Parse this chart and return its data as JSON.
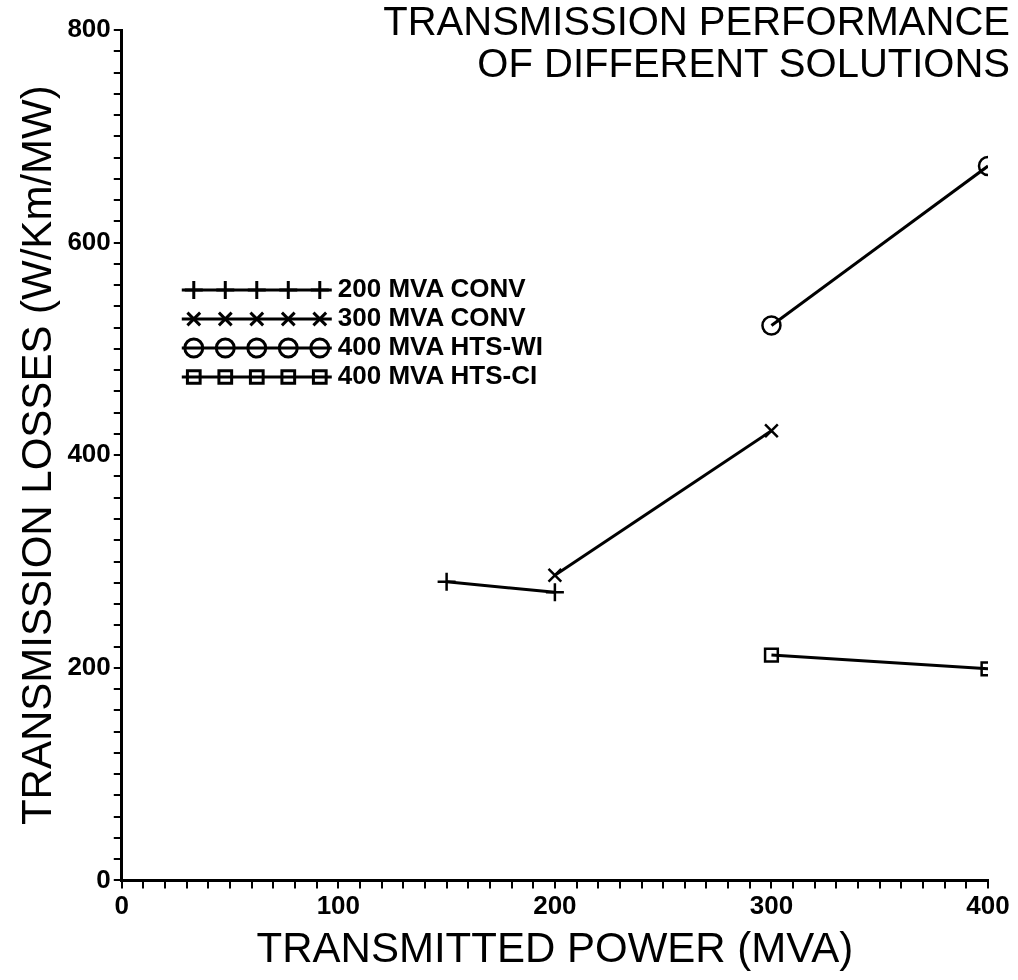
{
  "chart_data": {
    "type": "line",
    "title": "TRANSMISSION PERFORMANCE\nOF DIFFERENT SOLUTIONS",
    "xlabel": "TRANSMITTED POWER (MVA)",
    "ylabel": "TRANSMISSION LOSSES (W/Km/MW)",
    "series": [
      {
        "name": "200 MVA CONV",
        "color": "#000000",
        "marker": "plus",
        "x": [
          150,
          200
        ],
        "values": [
          281,
          271
        ]
      },
      {
        "name": "300 MVA CONV",
        "color": "#000000",
        "marker": "cross",
        "x": [
          200,
          300
        ],
        "values": [
          287,
          423
        ]
      },
      {
        "name": "400 MVA HTS-WI",
        "color": "#000000",
        "marker": "circle",
        "x": [
          300,
          400
        ],
        "values": [
          522,
          672
        ]
      },
      {
        "name": "400 MVA HTS-CI",
        "color": "#000000",
        "marker": "square",
        "x": [
          300,
          400
        ],
        "values": [
          212,
          199
        ]
      }
    ],
    "xlim": [
      0,
      400
    ],
    "ylim": [
      0,
      800
    ],
    "xticks": [
      0,
      {
        "value": 10,
        "label": null
      },
      {
        "value": 20,
        "label": null
      },
      {
        "value": 30,
        "label": null
      },
      {
        "value": 40,
        "label": null
      },
      {
        "value": 50,
        "label": null
      },
      {
        "value": 60,
        "label": null
      },
      {
        "value": 70,
        "label": null
      },
      {
        "value": 80,
        "label": null
      },
      {
        "value": 90,
        "label": null
      },
      100,
      {
        "value": 110,
        "label": null
      },
      {
        "value": 120,
        "label": null
      },
      {
        "value": 130,
        "label": null
      },
      {
        "value": 140,
        "label": null
      },
      {
        "value": 150,
        "label": null
      },
      {
        "value": 160,
        "label": null
      },
      {
        "value": 170,
        "label": null
      },
      {
        "value": 180,
        "label": null
      },
      {
        "value": 190,
        "label": null
      },
      200,
      {
        "value": 210,
        "label": null
      },
      {
        "value": 220,
        "label": null
      },
      {
        "value": 230,
        "label": null
      },
      {
        "value": 240,
        "label": null
      },
      {
        "value": 250,
        "label": null
      },
      {
        "value": 260,
        "label": null
      },
      {
        "value": 270,
        "label": null
      },
      {
        "value": 280,
        "label": null
      },
      {
        "value": 290,
        "label": null
      },
      300,
      {
        "value": 310,
        "label": null
      },
      {
        "value": 320,
        "label": null
      },
      {
        "value": 330,
        "label": null
      },
      {
        "value": 340,
        "label": null
      },
      {
        "value": 350,
        "label": null
      },
      {
        "value": 360,
        "label": null
      },
      {
        "value": 370,
        "label": null
      },
      {
        "value": 380,
        "label": null
      },
      {
        "value": 390,
        "label": null
      },
      400
    ],
    "yticks": [
      0,
      {
        "value": 20,
        "label": null
      },
      {
        "value": 40,
        "label": null
      },
      {
        "value": 60,
        "label": null
      },
      {
        "value": 80,
        "label": null
      },
      {
        "value": 100,
        "label": null
      },
      {
        "value": 120,
        "label": null
      },
      {
        "value": 140,
        "label": null
      },
      {
        "value": 160,
        "label": null
      },
      {
        "value": 180,
        "label": null
      },
      200,
      {
        "value": 220,
        "label": null
      },
      {
        "value": 240,
        "label": null
      },
      {
        "value": 260,
        "label": null
      },
      {
        "value": 280,
        "label": null
      },
      {
        "value": 300,
        "label": null
      },
      {
        "value": 320,
        "label": null
      },
      {
        "value": 340,
        "label": null
      },
      {
        "value": 360,
        "label": null
      },
      {
        "value": 380,
        "label": null
      },
      400,
      {
        "value": 420,
        "label": null
      },
      {
        "value": 440,
        "label": null
      },
      {
        "value": 460,
        "label": null
      },
      {
        "value": 480,
        "label": null
      },
      {
        "value": 500,
        "label": null
      },
      {
        "value": 520,
        "label": null
      },
      {
        "value": 540,
        "label": null
      },
      {
        "value": 560,
        "label": null
      },
      {
        "value": 580,
        "label": null
      },
      600,
      {
        "value": 620,
        "label": null
      },
      {
        "value": 640,
        "label": null
      },
      {
        "value": 660,
        "label": null
      },
      {
        "value": 680,
        "label": null
      },
      {
        "value": 700,
        "label": null
      },
      {
        "value": 720,
        "label": null
      },
      {
        "value": 740,
        "label": null
      },
      {
        "value": 760,
        "label": null
      },
      {
        "value": 780,
        "label": null
      },
      800
    ],
    "grid": false,
    "legend": "top left",
    "line_style": "solid"
  }
}
